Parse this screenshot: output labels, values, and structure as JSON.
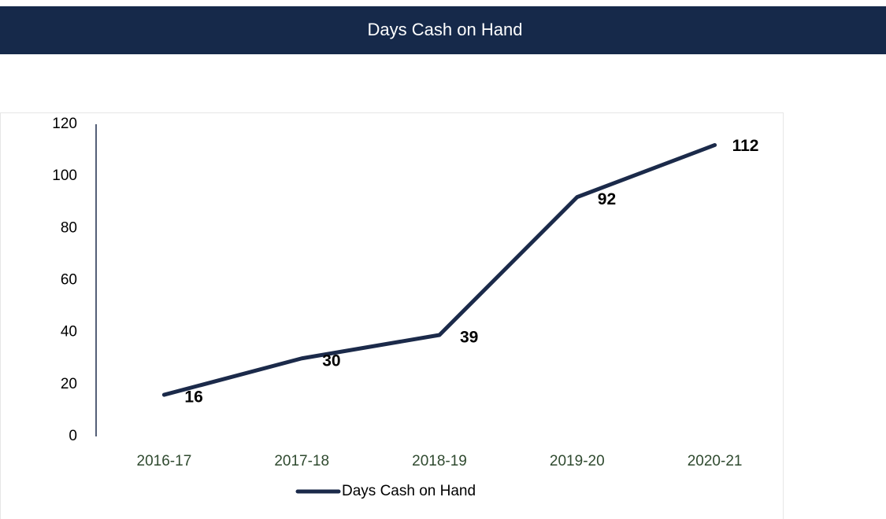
{
  "chart_data": {
    "type": "line",
    "title": "Days Cash on Hand",
    "categories": [
      "2016-17",
      "2017-18",
      "2018-19",
      "2019-20",
      "2020-21"
    ],
    "series": [
      {
        "name": "Days Cash on Hand",
        "color": "#1b2a4a",
        "values": [
          16,
          30,
          39,
          92,
          112
        ]
      }
    ],
    "ylim": [
      0,
      120
    ],
    "yticks": [
      0,
      20,
      40,
      60,
      80,
      100,
      120
    ],
    "grid": false,
    "legend": "bottom"
  }
}
